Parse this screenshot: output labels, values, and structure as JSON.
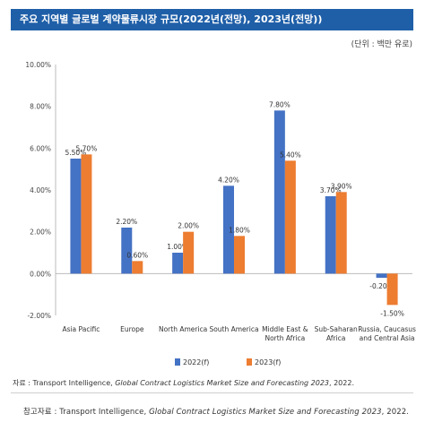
{
  "header": {
    "title": "주요 지역별 글로벌 계약물류시장 규모(2022년(전망), 2023년(전망))",
    "unit": "(단위 : 백만 유로)"
  },
  "chart_data": {
    "type": "bar",
    "categories": [
      [
        "Asia Pacific"
      ],
      [
        "Europe"
      ],
      [
        "North America"
      ],
      [
        "South America"
      ],
      [
        "Middle East &",
        "North Africa"
      ],
      [
        "Sub-Saharan",
        "Africa"
      ],
      [
        "Russia, Caucasus",
        "and Central Asia"
      ]
    ],
    "series": [
      {
        "name": "2022(f)",
        "color": "#4472c4",
        "values": [
          5.5,
          2.2,
          1.0,
          4.2,
          7.8,
          3.7,
          -0.2
        ],
        "labels": [
          "5.50%",
          "2.20%",
          "1.00%",
          "4.20%",
          "7.80%",
          "3.70%",
          "-0.20%"
        ]
      },
      {
        "name": "2023(f)",
        "color": "#ed7d31",
        "values": [
          5.7,
          0.6,
          2.0,
          1.8,
          5.4,
          3.9,
          -1.5
        ],
        "labels": [
          "5.70%",
          "0.60%",
          "2.00%",
          "1.80%",
          "5.40%",
          "3.90%",
          "-1.50%"
        ]
      }
    ],
    "ylim": [
      -2,
      10
    ],
    "yticks": [
      -2,
      0,
      2,
      4,
      6,
      8,
      10
    ],
    "ytick_labels": [
      "-2.00%",
      "0.00%",
      "2.00%",
      "4.00%",
      "6.00%",
      "8.00%",
      "10.00%"
    ],
    "legend_position": "bottom",
    "grid": false
  },
  "footer": {
    "source_prefix": "자료 : Transport Intelligence, ",
    "source_title": "Global Contract Logistics Market Size and Forecasting 2023",
    "source_suffix": ", 2022.",
    "note_prefix": "참고자료 : Transport Intelligence, ",
    "note_title": "Global Contract Logistics Market Size and Forecasting 2023",
    "note_suffix": ", 2022."
  }
}
